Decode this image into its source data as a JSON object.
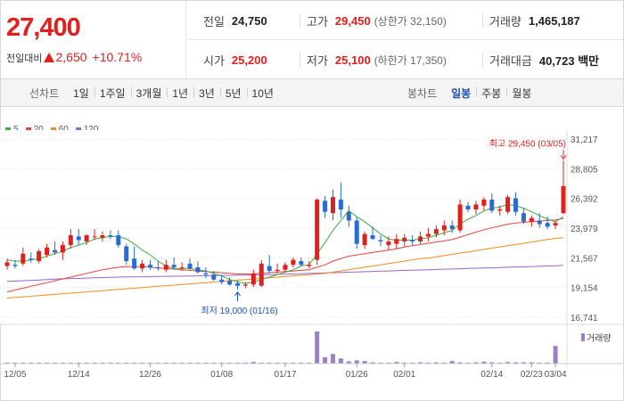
{
  "quote": {
    "price": "27,400",
    "change_label": "전일대비",
    "change_value": "2,650",
    "change_pct": "+10.71%",
    "stats": {
      "prev_close": {
        "label": "전일",
        "value": "24,750"
      },
      "high": {
        "label": "고가",
        "value": "29,450",
        "sub": "(상한가 32,150)"
      },
      "volume": {
        "label": "거래량",
        "value": "1,465,187"
      },
      "open": {
        "label": "시가",
        "value": "25,200"
      },
      "low": {
        "label": "저가",
        "value": "25,100",
        "sub": "(하한가 17,350)"
      },
      "turnover": {
        "label": "거래대금",
        "value": "40,723 백만"
      }
    }
  },
  "toolbar": {
    "line_chart_label": "선차트",
    "line_periods": [
      "1일",
      "1주일",
      "3개월",
      "1년",
      "3년",
      "5년",
      "10년"
    ],
    "candle_chart_label": "봉차트",
    "candle_periods": [
      "일봉",
      "주봉",
      "월봉"
    ],
    "active_candle_period": "일봉"
  },
  "chart_data": {
    "type": "candlestick",
    "title": "",
    "y_ticks": [
      31217,
      28805,
      26392,
      23979,
      21567,
      19154,
      16741
    ],
    "y_tick_labels": [
      "31,217",
      "28,805",
      "26,392",
      "23,979",
      "21,567",
      "19,154",
      "16,741"
    ],
    "ylim": [
      16741,
      31217
    ],
    "x_tick_labels": [
      "12/05",
      "12/14",
      "12/26",
      "01/08",
      "01/17",
      "01/26",
      "02/01",
      "02/14",
      "02/23",
      "03/04"
    ],
    "legend": [
      {
        "name": "5",
        "color": "#3cae3c"
      },
      {
        "name": "20",
        "color": "#e8413e"
      },
      {
        "name": "60",
        "color": "#f08c1e"
      },
      {
        "name": "120",
        "color": "#9a66cc"
      }
    ],
    "annotations": {
      "high": "최고 29,450 (03/05)",
      "low": "최저 19,000 (01/16)"
    },
    "volume_legend": "거래량",
    "candles": [
      {
        "o": 20900,
        "h": 21500,
        "l": 20600,
        "c": 21200
      },
      {
        "o": 21000,
        "h": 21400,
        "l": 20700,
        "c": 20900
      },
      {
        "o": 21100,
        "h": 22400,
        "l": 20900,
        "c": 21900
      },
      {
        "o": 21500,
        "h": 22000,
        "l": 21200,
        "c": 21400
      },
      {
        "o": 21300,
        "h": 22300,
        "l": 21100,
        "c": 22100
      },
      {
        "o": 21800,
        "h": 22700,
        "l": 21600,
        "c": 22400
      },
      {
        "o": 22200,
        "h": 22900,
        "l": 21800,
        "c": 22000
      },
      {
        "o": 22000,
        "h": 22900,
        "l": 21400,
        "c": 22600
      },
      {
        "o": 22600,
        "h": 23900,
        "l": 22300,
        "c": 23400
      },
      {
        "o": 23300,
        "h": 23900,
        "l": 22600,
        "c": 23000
      },
      {
        "o": 22900,
        "h": 23500,
        "l": 22600,
        "c": 23400
      },
      {
        "o": 23300,
        "h": 23900,
        "l": 23000,
        "c": 23300
      },
      {
        "o": 23200,
        "h": 23700,
        "l": 22900,
        "c": 23400
      },
      {
        "o": 23400,
        "h": 23800,
        "l": 23100,
        "c": 23300
      },
      {
        "o": 23400,
        "h": 23800,
        "l": 22400,
        "c": 22600
      },
      {
        "o": 22500,
        "h": 22700,
        "l": 21000,
        "c": 21300
      },
      {
        "o": 21500,
        "h": 22500,
        "l": 20600,
        "c": 20700
      },
      {
        "o": 20700,
        "h": 21400,
        "l": 20400,
        "c": 21100
      },
      {
        "o": 21000,
        "h": 21400,
        "l": 20600,
        "c": 20800
      },
      {
        "o": 20800,
        "h": 21300,
        "l": 20500,
        "c": 20700
      },
      {
        "o": 20600,
        "h": 21400,
        "l": 20400,
        "c": 21000
      },
      {
        "o": 21000,
        "h": 21600,
        "l": 20600,
        "c": 20800
      },
      {
        "o": 20800,
        "h": 21200,
        "l": 20500,
        "c": 20800
      },
      {
        "o": 21100,
        "h": 21500,
        "l": 20600,
        "c": 20700
      },
      {
        "o": 20800,
        "h": 21300,
        "l": 20300,
        "c": 20400
      },
      {
        "o": 20300,
        "h": 20800,
        "l": 19900,
        "c": 20200
      },
      {
        "o": 20200,
        "h": 20500,
        "l": 19700,
        "c": 19800
      },
      {
        "o": 19800,
        "h": 20200,
        "l": 19400,
        "c": 19600
      },
      {
        "o": 19700,
        "h": 20000,
        "l": 19300,
        "c": 19400
      },
      {
        "o": 19500,
        "h": 19700,
        "l": 19000,
        "c": 19300
      },
      {
        "o": 19300,
        "h": 19600,
        "l": 19100,
        "c": 19400
      },
      {
        "o": 19400,
        "h": 20600,
        "l": 19200,
        "c": 20300
      },
      {
        "o": 19300,
        "h": 21400,
        "l": 19200,
        "c": 21100
      },
      {
        "o": 20900,
        "h": 21800,
        "l": 20300,
        "c": 20500
      },
      {
        "o": 20500,
        "h": 21100,
        "l": 20300,
        "c": 20600
      },
      {
        "o": 20600,
        "h": 21200,
        "l": 20400,
        "c": 21000
      },
      {
        "o": 21000,
        "h": 21600,
        "l": 20800,
        "c": 21400
      },
      {
        "o": 21300,
        "h": 21600,
        "l": 20900,
        "c": 21000
      },
      {
        "o": 20900,
        "h": 21300,
        "l": 20700,
        "c": 21000
      },
      {
        "o": 21400,
        "h": 26400,
        "l": 21000,
        "c": 26300
      },
      {
        "o": 26200,
        "h": 26600,
        "l": 24800,
        "c": 25300
      },
      {
        "o": 25200,
        "h": 27100,
        "l": 24600,
        "c": 26500
      },
      {
        "o": 26300,
        "h": 27700,
        "l": 24800,
        "c": 25500
      },
      {
        "o": 25300,
        "h": 25800,
        "l": 24100,
        "c": 24600
      },
      {
        "o": 24600,
        "h": 24900,
        "l": 22300,
        "c": 22700
      },
      {
        "o": 22600,
        "h": 23700,
        "l": 22300,
        "c": 23500
      },
      {
        "o": 23400,
        "h": 24100,
        "l": 23000,
        "c": 23100
      },
      {
        "o": 23000,
        "h": 23400,
        "l": 22500,
        "c": 22900
      },
      {
        "o": 22600,
        "h": 23300,
        "l": 22200,
        "c": 22900
      },
      {
        "o": 22700,
        "h": 23500,
        "l": 22300,
        "c": 23100
      },
      {
        "o": 22900,
        "h": 23500,
        "l": 22500,
        "c": 23200
      },
      {
        "o": 23000,
        "h": 23400,
        "l": 22600,
        "c": 22900
      },
      {
        "o": 22900,
        "h": 23700,
        "l": 22700,
        "c": 23300
      },
      {
        "o": 23300,
        "h": 24000,
        "l": 22900,
        "c": 23500
      },
      {
        "o": 23500,
        "h": 24200,
        "l": 23200,
        "c": 23900
      },
      {
        "o": 23800,
        "h": 24600,
        "l": 23400,
        "c": 24200
      },
      {
        "o": 24200,
        "h": 24600,
        "l": 23600,
        "c": 23900
      },
      {
        "o": 23800,
        "h": 26300,
        "l": 23600,
        "c": 25900
      },
      {
        "o": 25800,
        "h": 26100,
        "l": 25300,
        "c": 25500
      },
      {
        "o": 25500,
        "h": 26200,
        "l": 25100,
        "c": 25900
      },
      {
        "o": 25800,
        "h": 26500,
        "l": 25400,
        "c": 26300
      },
      {
        "o": 26300,
        "h": 26800,
        "l": 25200,
        "c": 25400
      },
      {
        "o": 25400,
        "h": 25800,
        "l": 25000,
        "c": 25500
      },
      {
        "o": 25300,
        "h": 26700,
        "l": 25100,
        "c": 26500
      },
      {
        "o": 26400,
        "h": 26900,
        "l": 25000,
        "c": 25300
      },
      {
        "o": 25200,
        "h": 25600,
        "l": 24300,
        "c": 24500
      },
      {
        "o": 24500,
        "h": 25000,
        "l": 24100,
        "c": 24800
      },
      {
        "o": 24600,
        "h": 25200,
        "l": 24000,
        "c": 24300
      },
      {
        "o": 24400,
        "h": 24900,
        "l": 23900,
        "c": 24100
      },
      {
        "o": 24200,
        "h": 24600,
        "l": 23900,
        "c": 24400
      },
      {
        "o": 25200,
        "h": 29450,
        "l": 25100,
        "c": 27400
      }
    ],
    "ma5": [
      21400,
      21300,
      21300,
      21400,
      21500,
      21700,
      21900,
      22100,
      22400,
      22600,
      22800,
      23100,
      23200,
      23300,
      23300,
      23100,
      22700,
      22200,
      21800,
      21300,
      20900,
      20700,
      20700,
      20700,
      20600,
      20500,
      20300,
      20100,
      19800,
      19600,
      19500,
      19600,
      19800,
      20000,
      20200,
      20400,
      20600,
      20900,
      21000,
      21900,
      22800,
      23800,
      24600,
      25400,
      24900,
      24500,
      24000,
      23500,
      23100,
      23000,
      23000,
      23000,
      23100,
      23200,
      23400,
      23600,
      23800,
      24300,
      24700,
      25000,
      25400,
      25600,
      25700,
      25900,
      25800,
      25600,
      25300,
      25000,
      24700,
      24500,
      24900
    ],
    "ma20": [
      18800,
      18950,
      19100,
      19250,
      19400,
      19550,
      19700,
      19850,
      20000,
      20150,
      20300,
      20450,
      20600,
      20700,
      20800,
      20850,
      20850,
      20850,
      20800,
      20750,
      20700,
      20650,
      20600,
      20550,
      20500,
      20450,
      20400,
      20350,
      20300,
      20250,
      20250,
      20250,
      20300,
      20350,
      20400,
      20450,
      20500,
      20550,
      20600,
      20800,
      21000,
      21300,
      21500,
      21700,
      21800,
      21900,
      22000,
      22100,
      22200,
      22300,
      22450,
      22550,
      22650,
      22750,
      22850,
      22950,
      23050,
      23250,
      23450,
      23650,
      23850,
      24000,
      24150,
      24300,
      24400,
      24450,
      24500,
      24550,
      24600,
      24650,
      24750
    ],
    "ma60": [
      18300,
      18350,
      18400,
      18450,
      18500,
      18550,
      18600,
      18650,
      18700,
      18750,
      18800,
      18850,
      18900,
      18950,
      19000,
      19050,
      19100,
      19150,
      19200,
      19250,
      19300,
      19350,
      19400,
      19450,
      19500,
      19550,
      19600,
      19650,
      19700,
      19750,
      19800,
      19850,
      19900,
      19950,
      20000,
      20050,
      20100,
      20150,
      20200,
      20250,
      20300,
      20400,
      20500,
      20600,
      20700,
      20800,
      20900,
      21000,
      21100,
      21200,
      21300,
      21400,
      21500,
      21550,
      21650,
      21750,
      21850,
      21950,
      22050,
      22150,
      22250,
      22350,
      22450,
      22550,
      22650,
      22750,
      22850,
      22950,
      23050,
      23150,
      23200
    ],
    "ma120": [
      19650,
      19680,
      19710,
      19740,
      19770,
      19800,
      19830,
      19860,
      19880,
      19900,
      19920,
      19940,
      19960,
      19980,
      20000,
      20010,
      20020,
      20030,
      20040,
      20050,
      20060,
      20070,
      20080,
      20090,
      20100,
      20110,
      20120,
      20130,
      20140,
      20150,
      20160,
      20170,
      20180,
      20200,
      20220,
      20240,
      20260,
      20280,
      20300,
      20320,
      20340,
      20360,
      20380,
      20400,
      20420,
      20440,
      20460,
      20480,
      20500,
      20520,
      20540,
      20560,
      20580,
      20600,
      20620,
      20640,
      20660,
      20680,
      20700,
      20720,
      20740,
      20760,
      20780,
      20800,
      20820,
      20840,
      20860,
      20880,
      20900,
      20920,
      20950
    ],
    "volume": [
      3,
      3,
      3,
      3,
      3,
      3,
      3,
      3,
      3,
      3,
      3,
      3,
      3,
      3,
      3,
      3,
      3,
      3,
      3,
      3,
      3,
      3,
      3,
      3,
      3,
      3,
      3,
      3,
      3,
      3,
      3,
      5,
      3,
      3,
      3,
      3,
      3,
      3,
      3,
      100,
      20,
      30,
      16,
      7,
      10,
      8,
      4,
      3,
      3,
      5,
      3,
      3,
      4,
      3,
      4,
      3,
      8,
      4,
      3,
      4,
      6,
      4,
      3,
      5,
      4,
      4,
      4,
      3,
      3,
      55
    ]
  }
}
